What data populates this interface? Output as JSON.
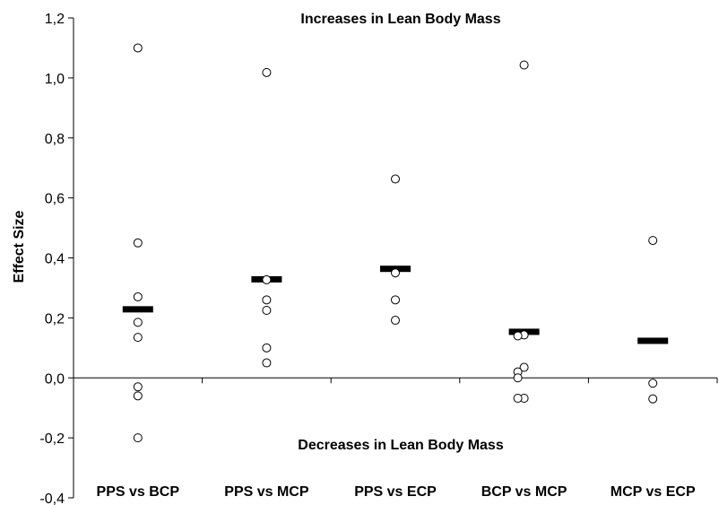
{
  "chart_data": {
    "type": "scatter",
    "ylabel": "Effect Size",
    "xlabel": "",
    "ylim": [
      -0.4,
      1.2
    ],
    "yticks": [
      "-0,4",
      "-0,2",
      "0,0",
      "0,2",
      "0,4",
      "0,6",
      "0,8",
      "1,0",
      "1,2"
    ],
    "annotation_top": "Increases in Lean Body Mass",
    "annotation_bottom": "Decreases in Lean Body Mass",
    "categories": [
      "PPS vs BCP",
      "PPS vs MCP",
      "PPS vs ECP",
      "BCP vs MCP",
      "MCP vs ECP"
    ],
    "points": [
      [
        1.1,
        0.45,
        0.27,
        0.185,
        0.135,
        -0.03,
        -0.06,
        -0.2
      ],
      [
        1.018,
        0.327,
        0.26,
        0.225,
        0.1,
        0.05
      ],
      [
        0.663,
        0.35,
        0.26,
        0.192
      ],
      [
        1.043,
        0.143,
        0.14,
        0.035,
        0.02,
        0.0,
        -0.068,
        -0.068
      ],
      [
        0.458,
        -0.018,
        -0.07
      ]
    ],
    "means": [
      0.23,
      0.33,
      0.365,
      0.155,
      0.125
    ],
    "grid": false,
    "legend": "none"
  }
}
